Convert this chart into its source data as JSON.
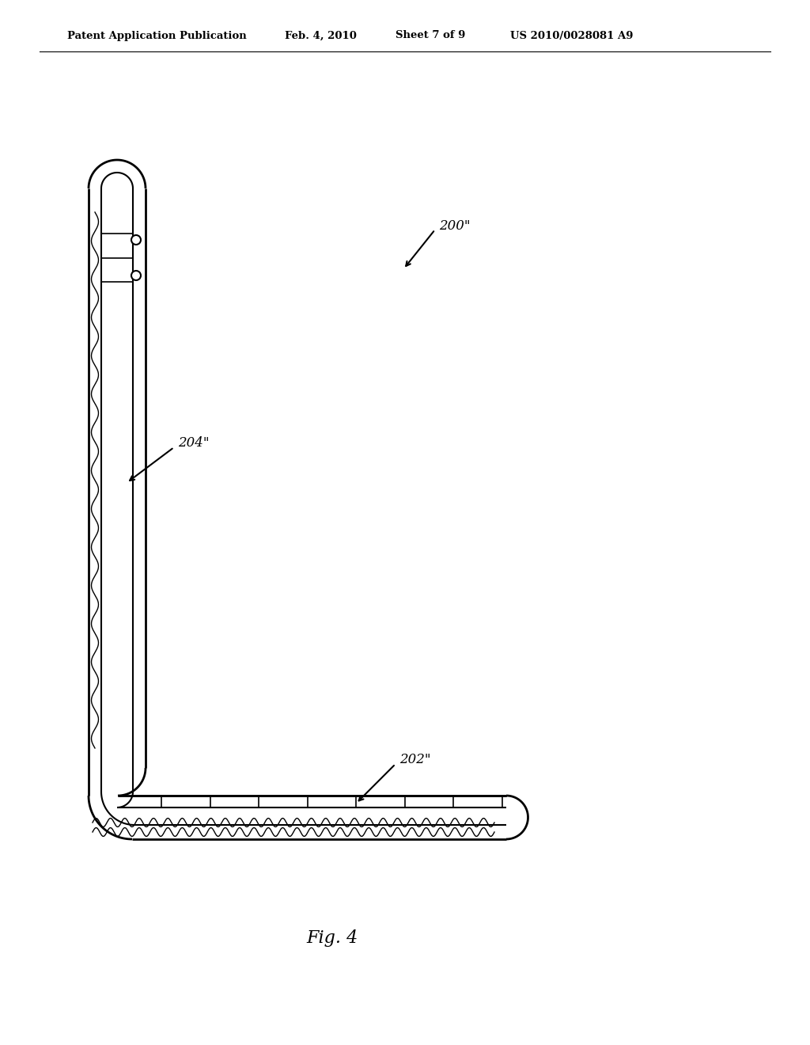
{
  "bg_color": "#ffffff",
  "line_color": "#000000",
  "title_line1": "Patent Application Publication",
  "title_date": "Feb. 4, 2010",
  "title_sheet": "Sheet 7 of 9",
  "title_patent": "US 2010/0028081 A9",
  "fig_label": "Fig. 4",
  "label_200": "200\"",
  "label_202": "202\"",
  "label_204": "204\"",
  "lw_outer": 2.0,
  "lw_inner": 1.2,
  "lw_thin": 0.8
}
